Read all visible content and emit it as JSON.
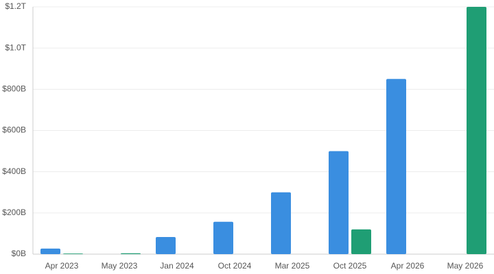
{
  "chart_data": {
    "type": "bar",
    "categories": [
      "Apr 2023",
      "May 2023",
      "Jan 2024",
      "Oct 2024",
      "Mar 2025",
      "Oct 2025",
      "Apr 2026",
      "May 2026"
    ],
    "series": [
      {
        "color": "#3a8ee0",
        "values": [
          27,
          null,
          83,
          157,
          300,
          500,
          850,
          null
        ]
      },
      {
        "color": "#1f9e74",
        "values": [
          3,
          4,
          null,
          null,
          null,
          120,
          null,
          1200
        ]
      }
    ],
    "ylim": [
      0,
      1200
    ],
    "yticks": [
      {
        "value": 0,
        "label": "$0B"
      },
      {
        "value": 200,
        "label": "$200B"
      },
      {
        "value": 400,
        "label": "$400B"
      },
      {
        "value": 600,
        "label": "$600B"
      },
      {
        "value": 800,
        "label": "$800B"
      },
      {
        "value": 1000,
        "label": "$1.0T"
      },
      {
        "value": 1200,
        "label": "$1.2T"
      }
    ],
    "grid": true
  }
}
